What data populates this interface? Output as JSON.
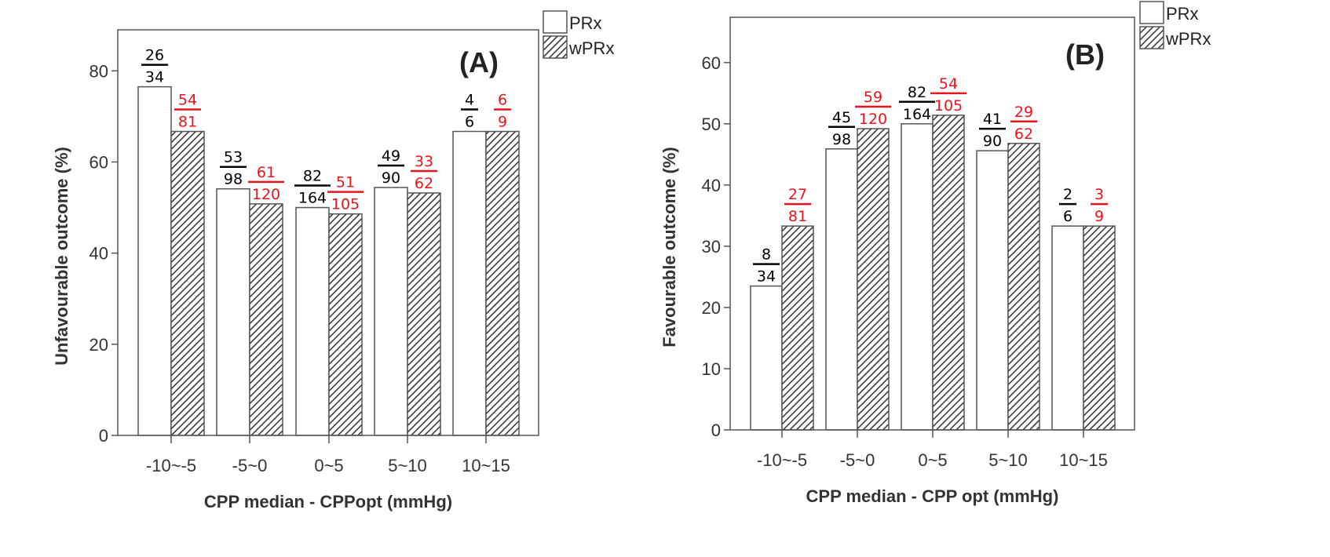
{
  "colors": {
    "prx_fill": "#ffffff",
    "wprx_hatch": "#333333",
    "prx_label": "#000000",
    "wprx_label": "#e8141c"
  },
  "chart_data": [
    {
      "type": "bar",
      "panel": "(A)",
      "xlabel": "CPP median - CPPopt (mmHg)",
      "ylabel": "Unfavourable outcome (%)",
      "categories": [
        "-10~-5",
        "-5~0",
        "0~5",
        "5~10",
        "10~15"
      ],
      "yticks": [
        0,
        20,
        40,
        60,
        80
      ],
      "ylim": [
        0,
        89
      ],
      "grid": false,
      "legend_position": "outside top-right",
      "series": [
        {
          "name": "PRx",
          "pattern": "plain",
          "values": [
            76.5,
            54.1,
            50.0,
            54.4,
            66.7
          ],
          "fractions": [
            [
              "26",
              "34"
            ],
            [
              "53",
              "98"
            ],
            [
              "82",
              "164"
            ],
            [
              "49",
              "90"
            ],
            [
              "4",
              "6"
            ]
          ]
        },
        {
          "name": "wPRx",
          "pattern": "hatched",
          "values": [
            66.7,
            50.8,
            48.6,
            53.2,
            66.7
          ],
          "fractions": [
            [
              "54",
              "81"
            ],
            [
              "61",
              "120"
            ],
            [
              "51",
              "105"
            ],
            [
              "33",
              "62"
            ],
            [
              "6",
              "9"
            ]
          ]
        }
      ]
    },
    {
      "type": "bar",
      "panel": "(B)",
      "xlabel": "CPP median - CPP opt (mmHg)",
      "ylabel": "Favourable outcome (%)",
      "categories": [
        "-10~-5",
        "-5~0",
        "0~5",
        "5~10",
        "10~15"
      ],
      "yticks": [
        0,
        10,
        20,
        30,
        40,
        50,
        60
      ],
      "ylim": [
        0,
        67.4
      ],
      "grid": false,
      "legend_position": "outside top-right",
      "series": [
        {
          "name": "PRx",
          "pattern": "plain",
          "values": [
            23.5,
            45.9,
            50.0,
            45.6,
            33.3
          ],
          "fractions": [
            [
              "8",
              "34"
            ],
            [
              "45",
              "98"
            ],
            [
              "82",
              "164"
            ],
            [
              "41",
              "90"
            ],
            [
              "2",
              "6"
            ]
          ]
        },
        {
          "name": "wPRx",
          "pattern": "hatched",
          "values": [
            33.3,
            49.2,
            51.4,
            46.8,
            33.3
          ],
          "fractions": [
            [
              "27",
              "81"
            ],
            [
              "59",
              "120"
            ],
            [
              "54",
              "105"
            ],
            [
              "29",
              "62"
            ],
            [
              "3",
              "9"
            ]
          ]
        }
      ]
    }
  ]
}
